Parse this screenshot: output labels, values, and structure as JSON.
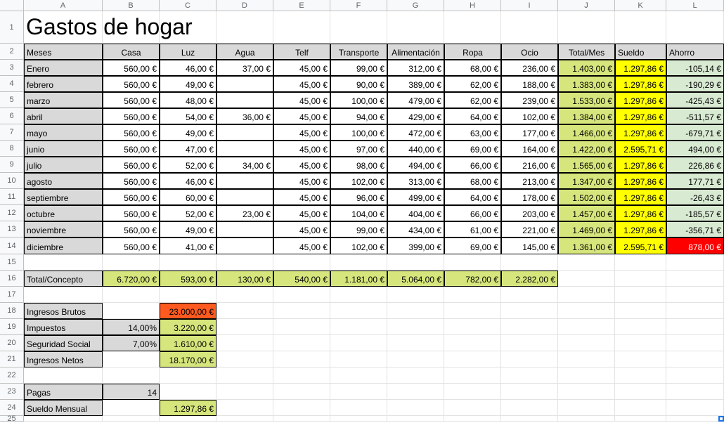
{
  "app": "Spreadsheet",
  "columns": [
    "A",
    "B",
    "C",
    "D",
    "E",
    "F",
    "G",
    "H",
    "I",
    "J",
    "K",
    "L"
  ],
  "rows": [
    "1",
    "2",
    "3",
    "4",
    "5",
    "6",
    "7",
    "8",
    "9",
    "10",
    "11",
    "12",
    "13",
    "14",
    "15",
    "16",
    "17",
    "18",
    "19",
    "20",
    "21",
    "22",
    "23",
    "24",
    "25"
  ],
  "title": "Gastos de hogar",
  "headers": [
    "Meses",
    "Casa",
    "Luz",
    "Agua",
    "Telf",
    "Transporte",
    "Alimentación",
    "Ropa",
    "Ocio",
    "Total/Mes",
    "Sueldo",
    "Ahorro"
  ],
  "months": [
    [
      "Enero",
      "560,00 €",
      "46,00 €",
      "37,00 €",
      "45,00 €",
      "99,00 €",
      "312,00 €",
      "68,00 €",
      "236,00 €",
      "1.403,00 €",
      "1.297,86 €",
      "-105,14 €"
    ],
    [
      "febrero",
      "560,00 €",
      "49,00 €",
      "",
      "45,00 €",
      "90,00 €",
      "389,00 €",
      "62,00 €",
      "188,00 €",
      "1.383,00 €",
      "1.297,86 €",
      "-190,29 €"
    ],
    [
      "marzo",
      "560,00 €",
      "48,00 €",
      "",
      "45,00 €",
      "100,00 €",
      "479,00 €",
      "62,00 €",
      "239,00 €",
      "1.533,00 €",
      "1.297,86 €",
      "-425,43 €"
    ],
    [
      "abril",
      "560,00 €",
      "54,00 €",
      "36,00 €",
      "45,00 €",
      "94,00 €",
      "429,00 €",
      "64,00 €",
      "102,00 €",
      "1.384,00 €",
      "1.297,86 €",
      "-511,57 €"
    ],
    [
      "mayo",
      "560,00 €",
      "49,00 €",
      "",
      "45,00 €",
      "100,00 €",
      "472,00 €",
      "63,00 €",
      "177,00 €",
      "1.466,00 €",
      "1.297,86 €",
      "-679,71 €"
    ],
    [
      "junio",
      "560,00 €",
      "47,00 €",
      "",
      "45,00 €",
      "97,00 €",
      "440,00 €",
      "69,00 €",
      "164,00 €",
      "1.422,00 €",
      "2.595,71 €",
      "494,00 €"
    ],
    [
      "julio",
      "560,00 €",
      "52,00 €",
      "34,00 €",
      "45,00 €",
      "98,00 €",
      "494,00 €",
      "66,00 €",
      "216,00 €",
      "1.565,00 €",
      "1.297,86 €",
      "226,86 €"
    ],
    [
      "agosto",
      "560,00 €",
      "46,00 €",
      "",
      "45,00 €",
      "102,00 €",
      "313,00 €",
      "68,00 €",
      "213,00 €",
      "1.347,00 €",
      "1.297,86 €",
      "177,71 €"
    ],
    [
      "septiembre",
      "560,00 €",
      "60,00 €",
      "",
      "45,00 €",
      "96,00 €",
      "499,00 €",
      "64,00 €",
      "178,00 €",
      "1.502,00 €",
      "1.297,86 €",
      "-26,43 €"
    ],
    [
      "octubre",
      "560,00 €",
      "52,00 €",
      "23,00 €",
      "45,00 €",
      "104,00 €",
      "404,00 €",
      "66,00 €",
      "203,00 €",
      "1.457,00 €",
      "1.297,86 €",
      "-185,57 €"
    ],
    [
      "noviembre",
      "560,00 €",
      "49,00 €",
      "",
      "45,00 €",
      "99,00 €",
      "434,00 €",
      "61,00 €",
      "221,00 €",
      "1.469,00 €",
      "1.297,86 €",
      "-356,71 €"
    ],
    [
      "diciembre",
      "560,00 €",
      "41,00 €",
      "",
      "45,00 €",
      "102,00 €",
      "399,00 €",
      "69,00 €",
      "145,00 €",
      "1.361,00 €",
      "2.595,71 €",
      "878,00 €"
    ]
  ],
  "totals": [
    "Total/Concepto",
    "6.720,00 €",
    "593,00 €",
    "130,00 €",
    "540,00 €",
    "1.181,00 €",
    "5.064,00 €",
    "782,00 €",
    "2.282,00 €"
  ],
  "summary": {
    "ingresos_brutos_label": "Ingresos Brutos",
    "ingresos_brutos_value": "23.000,00 €",
    "impuestos_label": "Impuestos",
    "impuestos_pct": "14,00%",
    "impuestos_value": "3.220,00 €",
    "seguridad_label": "Seguridad Social",
    "seguridad_pct": "7,00%",
    "seguridad_value": "1.610,00 €",
    "netos_label": "Ingresos Netos",
    "netos_value": "18.170,00 €",
    "pagas_label": "Pagas",
    "pagas_value": "14",
    "sueldo_label": "Sueldo Mensual",
    "sueldo_value": "1.297,86 €"
  },
  "colors": {
    "header_gray": "#d9d9d9",
    "total_green": "#d6e67c",
    "sueldo_yellow": "#ffff00",
    "ahorro_light_green": "#d9ead3",
    "alert_red": "#ff0000",
    "brutos_orange": "#ff5a1f"
  }
}
